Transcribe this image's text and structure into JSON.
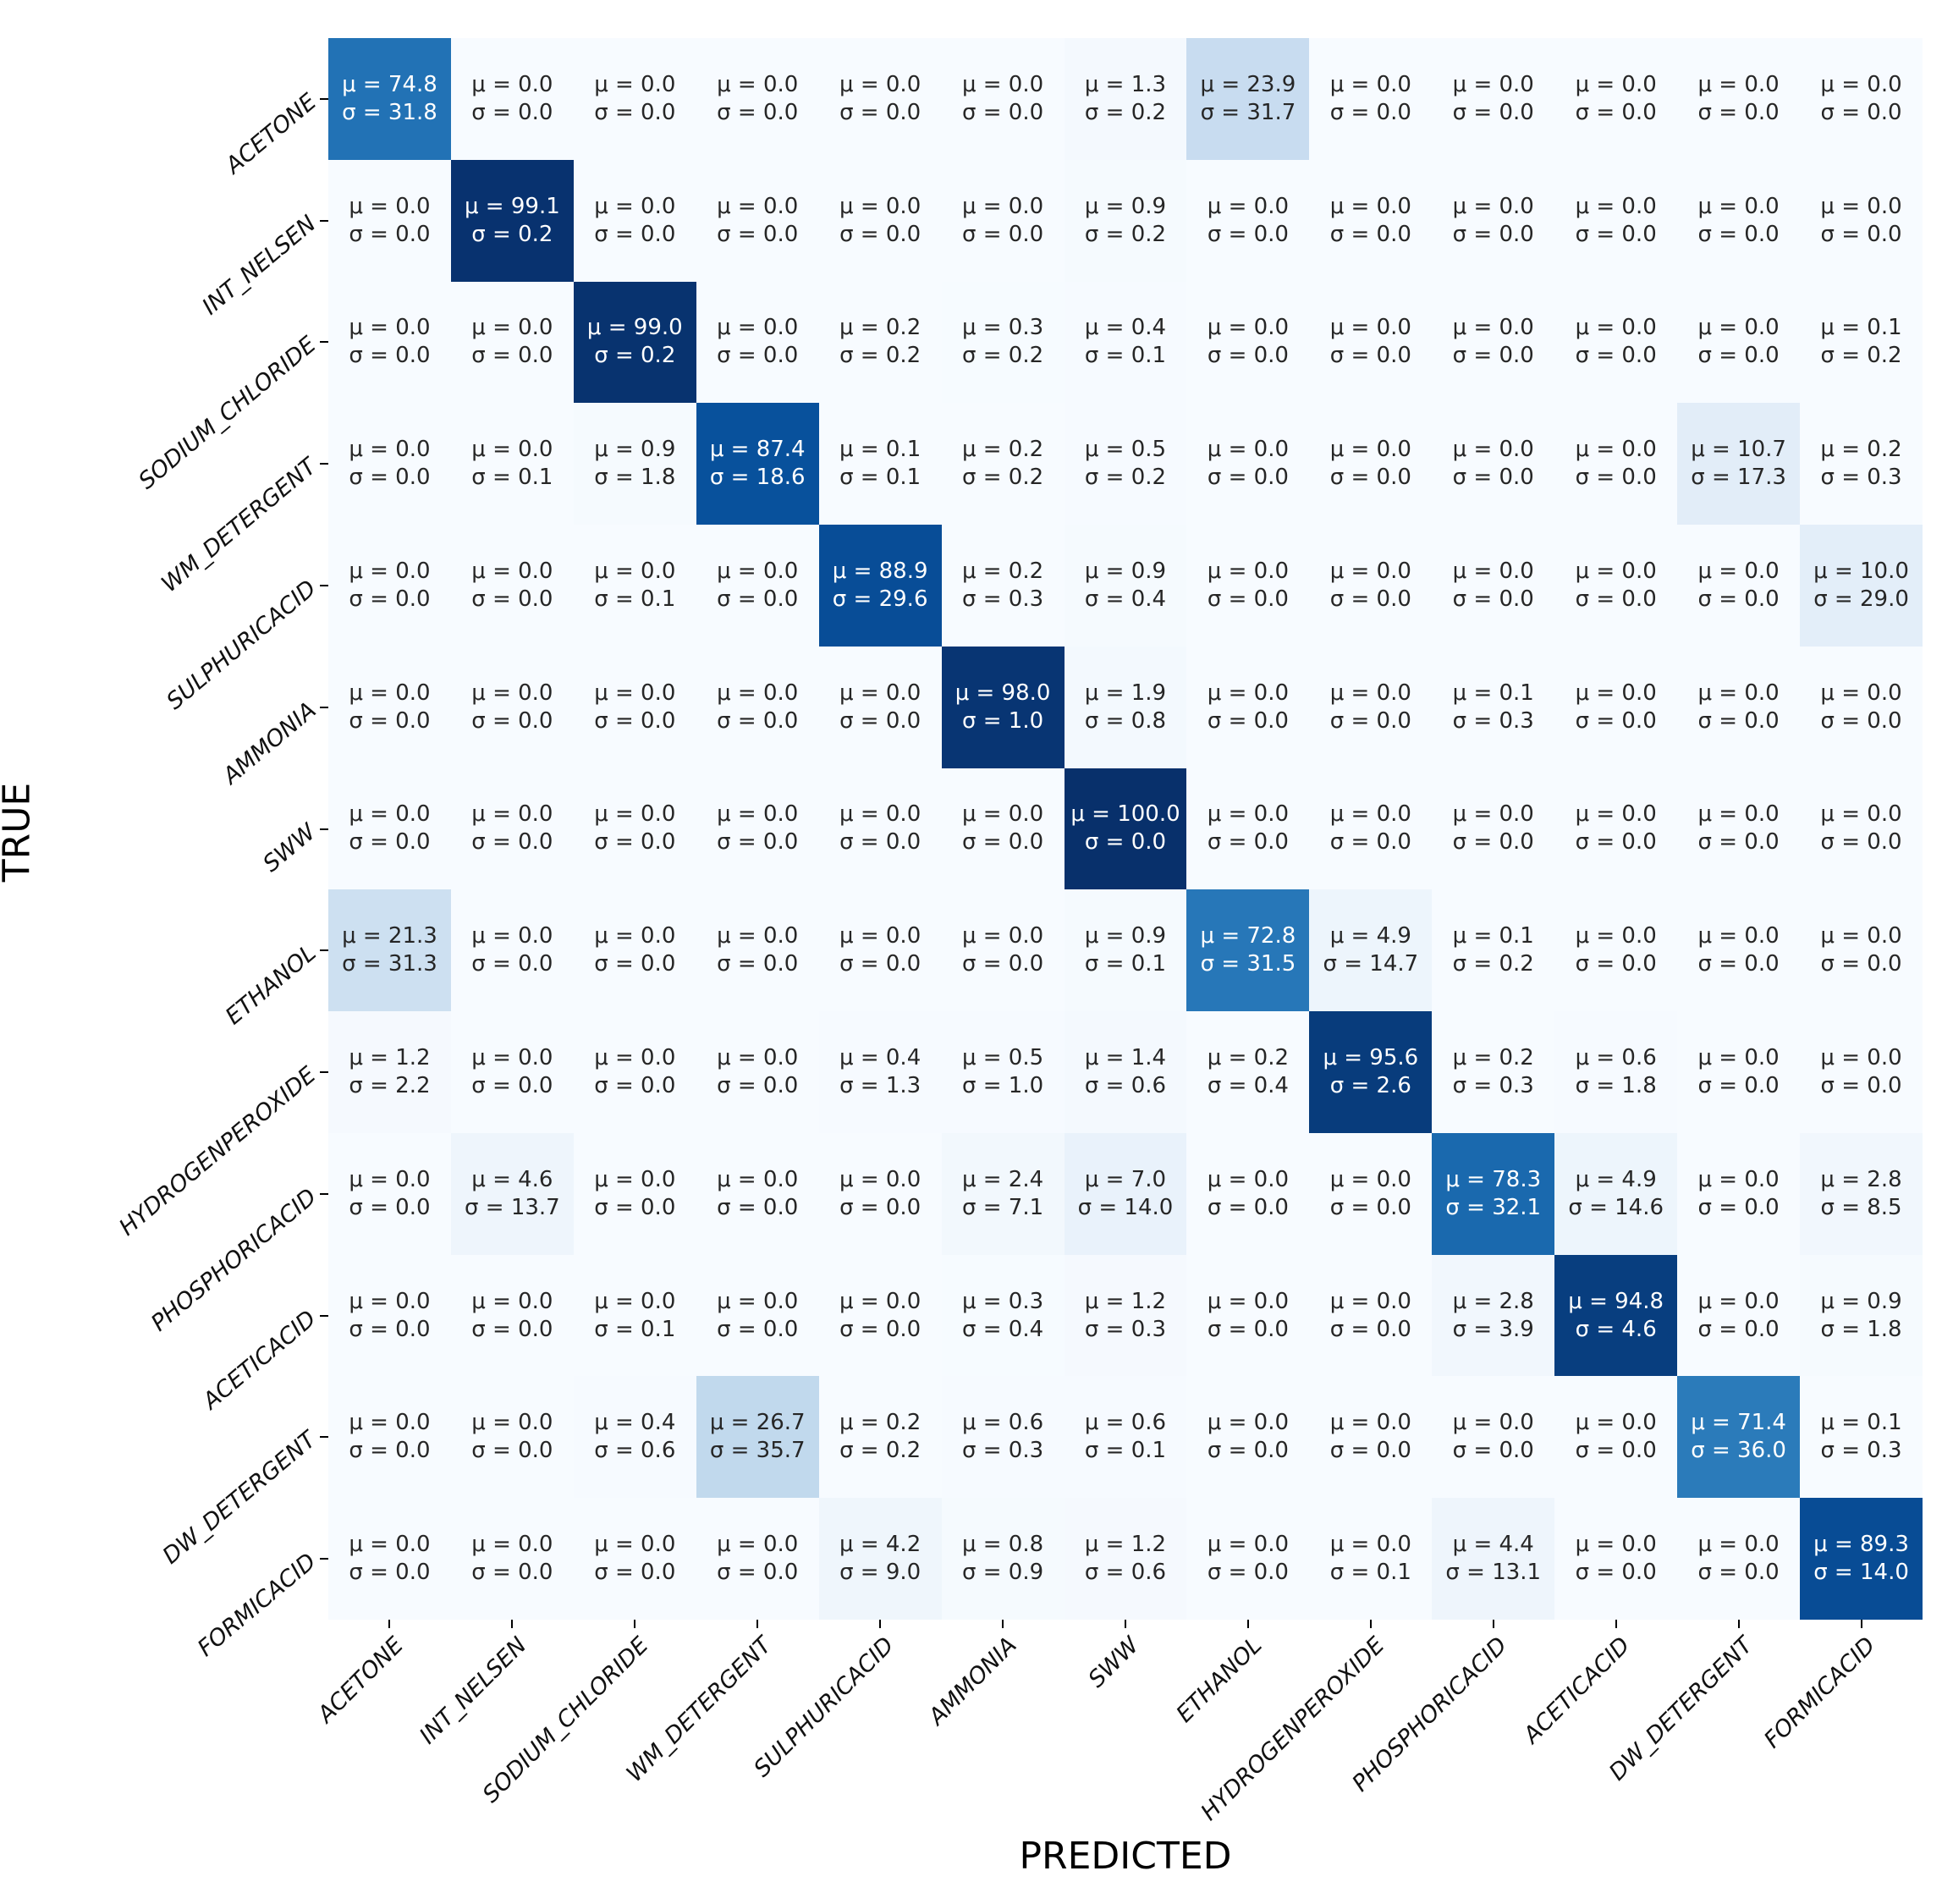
{
  "figure": {
    "xlabel": "PREDICTED",
    "ylabel": "TRUE"
  },
  "chart_data": {
    "type": "heatmap",
    "title": "",
    "xlabel": "PREDICTED",
    "ylabel": "TRUE",
    "colormap": "Blues",
    "value_range": [
      0,
      100
    ],
    "legend": "none",
    "annotation_format": "μ = {mu} ; σ = {sigma}",
    "x_categories": [
      "ACETONE",
      "INT_NELSEN",
      "SODIUM_CHLORIDE",
      "WM_DETERGENT",
      "SULPHURICACID",
      "AMMONIA",
      "SWW",
      "ETHANOL",
      "HYDROGENPEROXIDE",
      "PHOSPHORICACID",
      "ACETICACID",
      "DW_DETERGENT",
      "FORMICACID"
    ],
    "y_categories": [
      "ACETONE",
      "INT_NELSEN",
      "SODIUM_CHLORIDE",
      "WM_DETERGENT",
      "SULPHURICACID",
      "AMMONIA",
      "SWW",
      "ETHANOL",
      "HYDROGENPEROXIDE",
      "PHOSPHORICACID",
      "ACETICACID",
      "DW_DETERGENT",
      "FORMICACID"
    ],
    "mu": [
      [
        74.8,
        0.0,
        0.0,
        0.0,
        0.0,
        0.0,
        1.3,
        23.9,
        0.0,
        0.0,
        0.0,
        0.0,
        0.0
      ],
      [
        0.0,
        99.1,
        0.0,
        0.0,
        0.0,
        0.0,
        0.9,
        0.0,
        0.0,
        0.0,
        0.0,
        0.0,
        0.0
      ],
      [
        0.0,
        0.0,
        99.0,
        0.0,
        0.2,
        0.3,
        0.4,
        0.0,
        0.0,
        0.0,
        0.0,
        0.0,
        0.1
      ],
      [
        0.0,
        0.0,
        0.9,
        87.4,
        0.1,
        0.2,
        0.5,
        0.0,
        0.0,
        0.0,
        0.0,
        10.7,
        0.2
      ],
      [
        0.0,
        0.0,
        0.0,
        0.0,
        88.9,
        0.2,
        0.9,
        0.0,
        0.0,
        0.0,
        0.0,
        0.0,
        10.0
      ],
      [
        0.0,
        0.0,
        0.0,
        0.0,
        0.0,
        98.0,
        1.9,
        0.0,
        0.0,
        0.1,
        0.0,
        0.0,
        0.0
      ],
      [
        0.0,
        0.0,
        0.0,
        0.0,
        0.0,
        0.0,
        100.0,
        0.0,
        0.0,
        0.0,
        0.0,
        0.0,
        0.0
      ],
      [
        21.3,
        0.0,
        0.0,
        0.0,
        0.0,
        0.0,
        0.9,
        72.8,
        4.9,
        0.1,
        0.0,
        0.0,
        0.0
      ],
      [
        1.2,
        0.0,
        0.0,
        0.0,
        0.4,
        0.5,
        1.4,
        0.2,
        95.6,
        0.2,
        0.6,
        0.0,
        0.0
      ],
      [
        0.0,
        4.6,
        0.0,
        0.0,
        0.0,
        2.4,
        7.0,
        0.0,
        0.0,
        78.3,
        4.9,
        0.0,
        2.8
      ],
      [
        0.0,
        0.0,
        0.0,
        0.0,
        0.0,
        0.3,
        1.2,
        0.0,
        0.0,
        2.8,
        94.8,
        0.0,
        0.9
      ],
      [
        0.0,
        0.0,
        0.4,
        26.7,
        0.2,
        0.6,
        0.6,
        0.0,
        0.0,
        0.0,
        0.0,
        71.4,
        0.1
      ],
      [
        0.0,
        0.0,
        0.0,
        0.0,
        4.2,
        0.8,
        1.2,
        0.0,
        0.0,
        4.4,
        0.0,
        0.0,
        89.3
      ]
    ],
    "sigma": [
      [
        31.8,
        0.0,
        0.0,
        0.0,
        0.0,
        0.0,
        0.2,
        31.7,
        0.0,
        0.0,
        0.0,
        0.0,
        0.0
      ],
      [
        0.0,
        0.2,
        0.0,
        0.0,
        0.0,
        0.0,
        0.2,
        0.0,
        0.0,
        0.0,
        0.0,
        0.0,
        0.0
      ],
      [
        0.0,
        0.0,
        0.2,
        0.0,
        0.2,
        0.2,
        0.1,
        0.0,
        0.0,
        0.0,
        0.0,
        0.0,
        0.2
      ],
      [
        0.0,
        0.1,
        1.8,
        18.6,
        0.1,
        0.2,
        0.2,
        0.0,
        0.0,
        0.0,
        0.0,
        17.3,
        0.3
      ],
      [
        0.0,
        0.0,
        0.1,
        0.0,
        29.6,
        0.3,
        0.4,
        0.0,
        0.0,
        0.0,
        0.0,
        0.0,
        29.0
      ],
      [
        0.0,
        0.0,
        0.0,
        0.0,
        0.0,
        1.0,
        0.8,
        0.0,
        0.0,
        0.3,
        0.0,
        0.0,
        0.0
      ],
      [
        0.0,
        0.0,
        0.0,
        0.0,
        0.0,
        0.0,
        0.0,
        0.0,
        0.0,
        0.0,
        0.0,
        0.0,
        0.0
      ],
      [
        31.3,
        0.0,
        0.0,
        0.0,
        0.0,
        0.0,
        0.1,
        31.5,
        14.7,
        0.2,
        0.0,
        0.0,
        0.0
      ],
      [
        2.2,
        0.0,
        0.0,
        0.0,
        1.3,
        1.0,
        0.6,
        0.4,
        2.6,
        0.3,
        1.8,
        0.0,
        0.0
      ],
      [
        0.0,
        13.7,
        0.0,
        0.0,
        0.0,
        7.1,
        14.0,
        0.0,
        0.0,
        32.1,
        14.6,
        0.0,
        8.5
      ],
      [
        0.0,
        0.0,
        0.1,
        0.0,
        0.0,
        0.4,
        0.3,
        0.0,
        0.0,
        3.9,
        4.6,
        0.0,
        1.8
      ],
      [
        0.0,
        0.0,
        0.6,
        35.7,
        0.2,
        0.3,
        0.1,
        0.0,
        0.0,
        0.0,
        0.0,
        36.0,
        0.3
      ],
      [
        0.0,
        0.0,
        0.0,
        0.0,
        9.0,
        0.9,
        0.6,
        0.0,
        0.1,
        13.1,
        0.0,
        0.0,
        14.0
      ]
    ],
    "symbols": {
      "mu": "μ",
      "sigma": "σ"
    },
    "colors": {
      "cmap_low": "#f7fbff",
      "cmap_high": "#08306b",
      "annot_dark": "#262626",
      "annot_light": "#ffffff"
    }
  }
}
